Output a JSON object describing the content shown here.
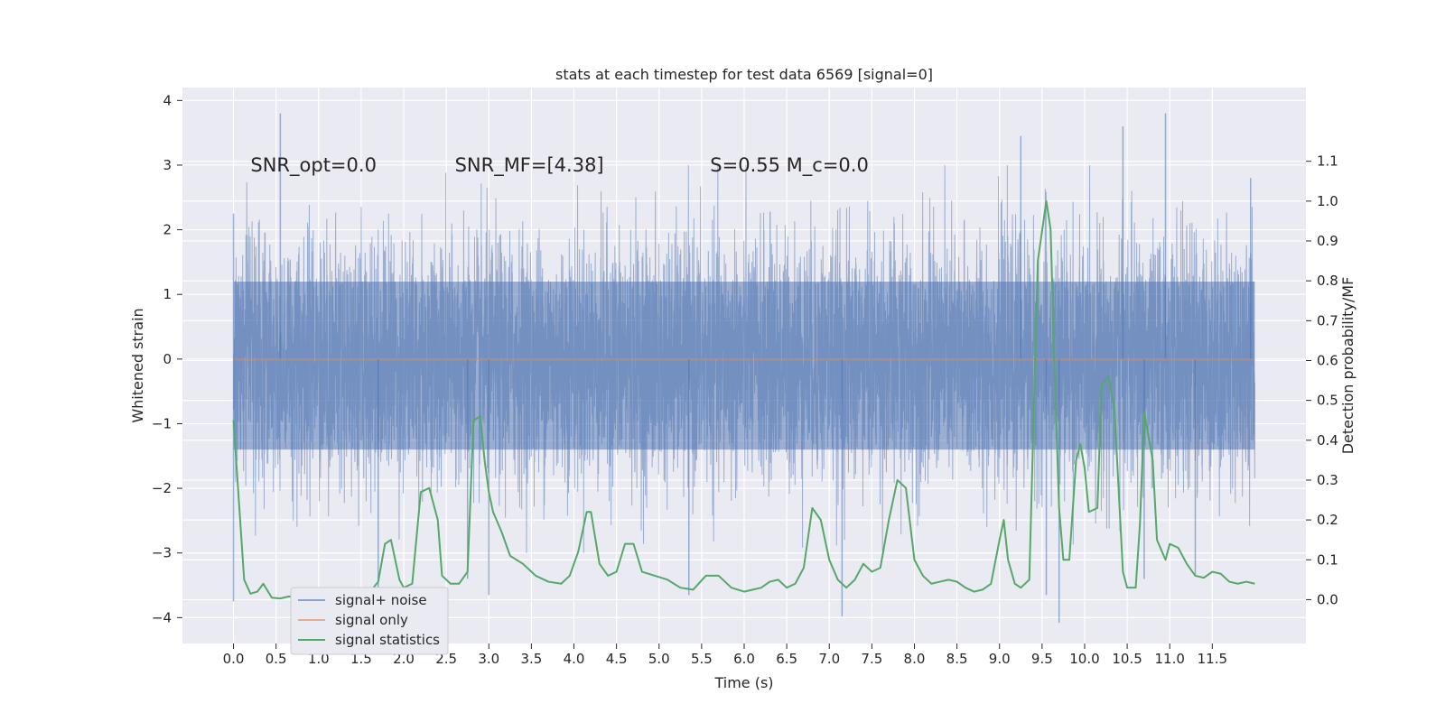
{
  "chart_data": {
    "type": "line",
    "title": "stats at each timestep for test data 6569 [signal=0]",
    "xlabel": "Time (s)",
    "ylabel": "Whitened strain",
    "y2label": "Detection probability/MF",
    "xlim": [
      -0.6,
      12.6
    ],
    "ylim": [
      -4.4,
      4.2
    ],
    "y2lim": [
      -0.11,
      1.285
    ],
    "x_ticks": [
      0.0,
      0.5,
      1.0,
      1.5,
      2.0,
      2.5,
      3.0,
      3.5,
      4.0,
      4.5,
      5.0,
      5.5,
      6.0,
      6.5,
      7.0,
      7.5,
      8.0,
      8.5,
      9.0,
      9.5,
      10.0,
      10.5,
      11.0,
      11.5
    ],
    "x_tick_labels": [
      "0.0",
      "0.5",
      "1.0",
      "1.5",
      "2.0",
      "2.5",
      "3.0",
      "3.5",
      "4.0",
      "4.5",
      "5.0",
      "5.5",
      "6.0",
      "6.5",
      "7.0",
      "7.5",
      "8.0",
      "8.5",
      "9.0",
      "9.5",
      "10.0",
      "10.5",
      "11.0",
      "11.5"
    ],
    "y_ticks": [
      -4,
      -3,
      -2,
      -1,
      0,
      1,
      2,
      3,
      4
    ],
    "y_tick_labels": [
      "−4",
      "−3",
      "−2",
      "−1",
      "0",
      "1",
      "2",
      "3",
      "4"
    ],
    "y2_ticks": [
      0.0,
      0.1,
      0.2,
      0.3,
      0.4,
      0.5,
      0.6,
      0.7,
      0.8,
      0.9,
      1.0,
      1.1
    ],
    "y2_tick_labels": [
      "0.0",
      "0.1",
      "0.2",
      "0.3",
      "0.4",
      "0.5",
      "0.6",
      "0.7",
      "0.8",
      "0.9",
      "1.0",
      "1.1"
    ],
    "grid": true,
    "legend_position": "lower-left",
    "annotations": [
      {
        "text": "SNR_opt=0.0",
        "x": 0.2,
        "y": 3.0
      },
      {
        "text": "SNR_MF=[4.38]",
        "x": 2.6,
        "y": 3.0
      },
      {
        "text": "S=0.55   M_c=0.0",
        "x": 5.6,
        "y": 3.0
      }
    ],
    "series": [
      {
        "name": "signal+ noise",
        "axis": "left",
        "color": "#4c72b0",
        "kind": "noise",
        "x_range": [
          0.0,
          12.0
        ],
        "typical_range": [
          -1.4,
          1.2
        ],
        "extremes": [
          {
            "x": 0.0,
            "y": -3.75
          },
          {
            "x": 0.0,
            "y": 2.25
          },
          {
            "x": 0.55,
            "y": 3.8
          },
          {
            "x": 1.7,
            "y": -3.6
          },
          {
            "x": 2.75,
            "y": -3.4
          },
          {
            "x": 3.0,
            "y": -3.65
          },
          {
            "x": 5.35,
            "y": -3.65
          },
          {
            "x": 7.15,
            "y": -3.98
          },
          {
            "x": 9.25,
            "y": 3.45
          },
          {
            "x": 9.55,
            "y": -3.65
          },
          {
            "x": 9.7,
            "y": -4.08
          },
          {
            "x": 10.7,
            "y": -3.4
          },
          {
            "x": 10.95,
            "y": 3.8
          },
          {
            "x": 10.45,
            "y": 3.6
          },
          {
            "x": 11.3,
            "y": -3.35
          },
          {
            "x": 11.95,
            "y": 2.8
          }
        ]
      },
      {
        "name": "signal only",
        "axis": "left",
        "color": "#dd8452",
        "x": [
          0.0,
          12.0
        ],
        "y": [
          0.0,
          0.0
        ]
      },
      {
        "name": "signal statistics",
        "axis": "right",
        "color": "#55a868",
        "x": [
          0.0,
          0.125,
          0.2,
          0.28,
          0.35,
          0.45,
          0.55,
          0.65,
          0.8,
          1.0,
          1.2,
          1.35,
          1.5,
          1.6,
          1.7,
          1.78,
          1.85,
          1.95,
          2.0,
          2.1,
          2.2,
          2.3,
          2.4,
          2.45,
          2.55,
          2.65,
          2.75,
          2.82,
          2.9,
          2.95,
          3.0,
          3.05,
          3.15,
          3.25,
          3.4,
          3.55,
          3.7,
          3.85,
          3.95,
          4.05,
          4.15,
          4.2,
          4.3,
          4.4,
          4.5,
          4.6,
          4.7,
          4.8,
          4.95,
          5.1,
          5.25,
          5.4,
          5.55,
          5.7,
          5.85,
          6.0,
          6.1,
          6.2,
          6.3,
          6.4,
          6.5,
          6.6,
          6.7,
          6.8,
          6.9,
          7.0,
          7.1,
          7.2,
          7.3,
          7.4,
          7.5,
          7.6,
          7.7,
          7.8,
          7.9,
          8.0,
          8.1,
          8.2,
          8.3,
          8.4,
          8.5,
          8.6,
          8.7,
          8.8,
          8.9,
          9.0,
          9.05,
          9.1,
          9.18,
          9.25,
          9.35,
          9.45,
          9.55,
          9.6,
          9.65,
          9.7,
          9.75,
          9.82,
          9.9,
          9.95,
          10.0,
          10.05,
          10.15,
          10.2,
          10.28,
          10.35,
          10.45,
          10.5,
          10.6,
          10.65,
          10.7,
          10.8,
          10.85,
          10.95,
          11.0,
          11.1,
          11.2,
          11.3,
          11.4,
          11.5,
          11.6,
          11.7,
          11.8,
          11.9,
          12.0
        ],
        "y": [
          0.45,
          0.05,
          0.015,
          0.02,
          0.04,
          0.005,
          0.003,
          0.008,
          0.005,
          0.01,
          0.005,
          0.008,
          0.02,
          0.018,
          0.045,
          0.14,
          0.15,
          0.05,
          0.03,
          0.04,
          0.27,
          0.28,
          0.2,
          0.06,
          0.04,
          0.04,
          0.07,
          0.45,
          0.46,
          0.35,
          0.27,
          0.22,
          0.17,
          0.11,
          0.09,
          0.06,
          0.045,
          0.04,
          0.06,
          0.12,
          0.22,
          0.22,
          0.09,
          0.06,
          0.07,
          0.14,
          0.14,
          0.07,
          0.06,
          0.05,
          0.03,
          0.025,
          0.06,
          0.06,
          0.03,
          0.02,
          0.025,
          0.03,
          0.045,
          0.05,
          0.03,
          0.04,
          0.08,
          0.23,
          0.2,
          0.1,
          0.05,
          0.03,
          0.05,
          0.09,
          0.07,
          0.08,
          0.2,
          0.3,
          0.28,
          0.1,
          0.06,
          0.04,
          0.045,
          0.05,
          0.045,
          0.03,
          0.02,
          0.025,
          0.04,
          0.15,
          0.2,
          0.1,
          0.04,
          0.03,
          0.05,
          0.85,
          1.0,
          0.93,
          0.56,
          0.23,
          0.1,
          0.1,
          0.35,
          0.39,
          0.33,
          0.22,
          0.23,
          0.54,
          0.56,
          0.48,
          0.07,
          0.03,
          0.03,
          0.19,
          0.47,
          0.35,
          0.15,
          0.1,
          0.14,
          0.13,
          0.09,
          0.06,
          0.055,
          0.07,
          0.065,
          0.045,
          0.04,
          0.045,
          0.04
        ]
      }
    ]
  }
}
